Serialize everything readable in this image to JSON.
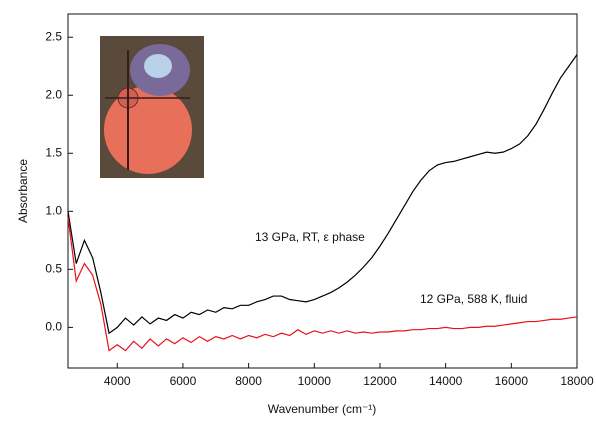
{
  "chart_data": {
    "type": "line",
    "x_label": "Wavenumber (cm⁻¹)",
    "y_label": "Absorbance",
    "annotations": [
      "13 GPa, RT, ε phase",
      "12 GPa, 588 K, fluid"
    ],
    "xlim": [
      2500,
      18000
    ],
    "ylim": [
      -0.35,
      2.7
    ],
    "xticks": [
      4000,
      6000,
      8000,
      10000,
      12000,
      14000,
      16000,
      18000
    ],
    "yticks": [
      {
        "value": 0,
        "label": "0.0"
      },
      0.5,
      {
        "value": 1,
        "label": "1.0"
      },
      1.5,
      {
        "value": 2,
        "label": "2.0"
      },
      2.5
    ],
    "x": [
      2500,
      2750,
      3000,
      3250,
      3500,
      3750,
      4000,
      4250,
      4500,
      4750,
      5000,
      5250,
      5500,
      5750,
      6000,
      6250,
      6500,
      6750,
      7000,
      7250,
      7500,
      7750,
      8000,
      8250,
      8500,
      8750,
      9000,
      9250,
      9500,
      9750,
      10000,
      10250,
      10500,
      10750,
      11000,
      11250,
      11500,
      11750,
      12000,
      12250,
      12500,
      12750,
      13000,
      13250,
      13500,
      13750,
      14000,
      14250,
      14500,
      14750,
      15000,
      15250,
      15500,
      15750,
      16000,
      16250,
      16500,
      16750,
      17000,
      17250,
      17500,
      17750,
      18000
    ],
    "series": [
      {
        "color": "#000000",
        "values": [
          1.0,
          0.55,
          0.75,
          0.6,
          0.3,
          -0.05,
          0.0,
          0.08,
          0.02,
          0.09,
          0.03,
          0.08,
          0.06,
          0.11,
          0.08,
          0.13,
          0.11,
          0.15,
          0.13,
          0.17,
          0.16,
          0.19,
          0.19,
          0.22,
          0.24,
          0.27,
          0.27,
          0.24,
          0.23,
          0.22,
          0.24,
          0.27,
          0.3,
          0.34,
          0.39,
          0.45,
          0.52,
          0.6,
          0.7,
          0.81,
          0.93,
          1.05,
          1.17,
          1.27,
          1.35,
          1.4,
          1.42,
          1.43,
          1.45,
          1.47,
          1.49,
          1.51,
          1.5,
          1.51,
          1.54,
          1.58,
          1.65,
          1.75,
          1.88,
          2.02,
          2.15,
          2.25,
          2.35
        ]
      },
      {
        "color": "#e8101a",
        "values": [
          0.95,
          0.4,
          0.55,
          0.45,
          0.2,
          -0.2,
          -0.15,
          -0.2,
          -0.12,
          -0.18,
          -0.1,
          -0.16,
          -0.1,
          -0.14,
          -0.09,
          -0.13,
          -0.08,
          -0.12,
          -0.08,
          -0.1,
          -0.07,
          -0.1,
          -0.07,
          -0.09,
          -0.06,
          -0.08,
          -0.05,
          -0.07,
          -0.02,
          -0.06,
          -0.03,
          -0.05,
          -0.03,
          -0.05,
          -0.03,
          -0.05,
          -0.04,
          -0.05,
          -0.04,
          -0.04,
          -0.03,
          -0.03,
          -0.02,
          -0.02,
          -0.01,
          -0.01,
          0.0,
          -0.01,
          -0.01,
          0.0,
          0.0,
          0.01,
          0.01,
          0.02,
          0.03,
          0.04,
          0.05,
          0.05,
          0.06,
          0.07,
          0.07,
          0.08,
          0.09
        ]
      }
    ]
  }
}
